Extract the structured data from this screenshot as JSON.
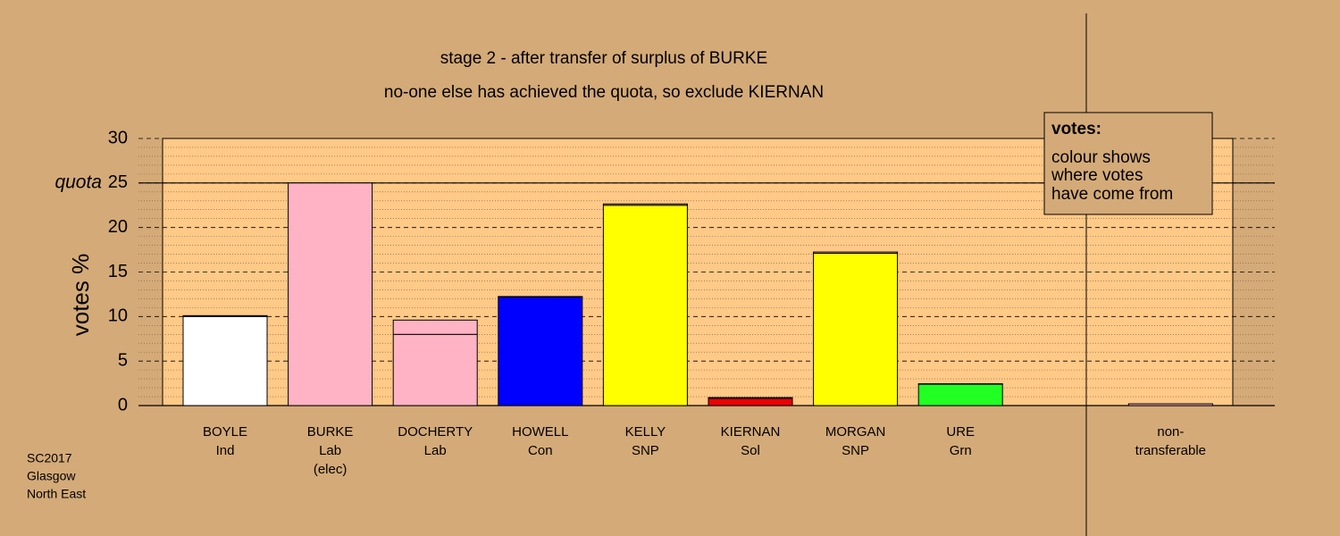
{
  "chart_data": {
    "type": "stacked-bar",
    "title": "stage 2 - after transfer of surplus of BURKE",
    "subtitle": "no-one else has achieved the quota, so exclude KIERNAN",
    "y_label": "votes %",
    "category_labels": [
      [
        "BOYLE",
        "Ind"
      ],
      [
        "BURKE",
        "Lab",
        "(elec)"
      ],
      [
        "DOCHERTY",
        "Lab"
      ],
      [
        "HOWELL",
        "Con"
      ],
      [
        "KELLY",
        "SNP"
      ],
      [
        "KIERNAN",
        "Sol"
      ],
      [
        "MORGAN",
        "SNP"
      ],
      [
        "URE",
        "Grn"
      ],
      null,
      [
        "non-",
        "transferable"
      ]
    ],
    "series": [
      {
        "colors": [
          "#ffffff",
          "#ffb3c4",
          "#ffb3c4",
          "#0000ff",
          "#ffff00",
          "#ee0000",
          "#ffff00",
          "#22ff22",
          null,
          "#ffb3c4"
        ],
        "values": [
          10.0,
          25.0,
          8.0,
          12.2,
          22.5,
          0.8,
          17.1,
          2.4,
          null,
          0
        ]
      },
      {
        "color": "#ffb3c4",
        "values": [
          0.1,
          null,
          1.6,
          0.05,
          0.15,
          0.1,
          0.15,
          0.05,
          null,
          0.2
        ]
      }
    ],
    "ylim": [
      0,
      30
    ],
    "yticks": [
      0,
      5,
      10,
      15,
      20,
      25,
      30
    ],
    "minor_grid_step": 1,
    "grid": true,
    "quota": {
      "value": 25,
      "label": "quota"
    },
    "legend": {
      "title": "votes:",
      "lines": [
        "colour shows",
        "where votes",
        "have come from"
      ]
    },
    "footnote": [
      "SC2017",
      "Glasgow",
      "North East"
    ]
  }
}
